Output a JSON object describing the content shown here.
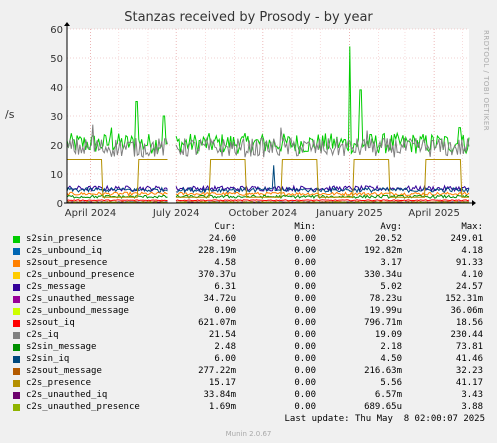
{
  "title": "Stanzas received by Prosody - by year",
  "side_label": "RRDTOOL / TOBI OETIKER",
  "ylabel": "/s",
  "chart_data": {
    "type": "line",
    "title": "Stanzas received by Prosody - by year",
    "xlabel": "",
    "ylabel": "/s",
    "ylim": [
      0,
      60
    ],
    "yticks": [
      0,
      10,
      20,
      30,
      40,
      50,
      60
    ],
    "xlim": [
      "2024-03-07",
      "2025-05-08"
    ],
    "xticks": [
      {
        "date": "2024-04-01",
        "label": "April 2024"
      },
      {
        "date": "2024-07-01",
        "label": "July 2024"
      },
      {
        "date": "2024-10-01",
        "label": "October 2024"
      },
      {
        "date": "2025-01-01",
        "label": "January 2025"
      },
      {
        "date": "2025-04-01",
        "label": "April 2025"
      }
    ],
    "grid": true,
    "gap": [
      "2024-06-22",
      "2024-06-30"
    ],
    "series": [
      {
        "name": "s2sin_presence",
        "color": "#00cc00",
        "avg": 20.52,
        "spikes": [
          [
            "2024-05-20",
            35
          ],
          [
            "2024-06-18",
            30
          ],
          [
            "2024-04-23",
            26
          ],
          [
            "2025-01-01",
            54
          ],
          [
            "2025-01-13",
            39
          ],
          [
            "2025-04-28",
            26
          ]
        ]
      },
      {
        "name": "c2s_unbound_iq",
        "color": "#0066b3",
        "avg": 0.19,
        "spikes": []
      },
      {
        "name": "s2sout_presence",
        "color": "#ff8000",
        "avg": 3.17,
        "spikes": []
      },
      {
        "name": "c2s_unbound_presence",
        "color": "#ffcc00",
        "avg": 0.0003,
        "spikes": []
      },
      {
        "name": "c2s_message",
        "color": "#330099",
        "avg": 5.02,
        "spikes": []
      },
      {
        "name": "c2s_unauthed_message",
        "color": "#990099",
        "avg": 8e-05,
        "spikes": []
      },
      {
        "name": "c2s_unbound_message",
        "color": "#ccff00",
        "avg": 2e-05,
        "spikes": []
      },
      {
        "name": "s2sout_iq",
        "color": "#ff0000",
        "avg": 0.797,
        "spikes": []
      },
      {
        "name": "c2s_iq",
        "color": "#808080",
        "avg": 19.09,
        "spikes": [
          [
            "2024-04-03",
            27
          ],
          [
            "2024-10-20",
            26
          ],
          [
            "2025-01-20",
            25
          ]
        ]
      },
      {
        "name": "s2sin_message",
        "color": "#008f00",
        "avg": 2.18,
        "spikes": []
      },
      {
        "name": "s2sin_iq",
        "color": "#00487d",
        "avg": 4.5,
        "spikes": [
          [
            "2024-10-12",
            13
          ]
        ]
      },
      {
        "name": "s2sout_message",
        "color": "#b35a00",
        "avg": 0.217,
        "spikes": []
      },
      {
        "name": "c2s_presence",
        "color": "#b38f00",
        "avg": 5.56,
        "spikes": []
      },
      {
        "name": "c2s_unauthed_iq",
        "color": "#6b006b",
        "avg": 0.00657,
        "spikes": []
      },
      {
        "name": "c2s_unauthed_presence",
        "color": "#8fb300",
        "avg": 0.00069,
        "spikes": []
      }
    ]
  },
  "legend": {
    "headers": {
      "cur": "Cur:",
      "min": "Min:",
      "avg": "Avg:",
      "max": "Max:"
    },
    "rows": [
      {
        "name": "s2sin_presence",
        "color": "#00cc00",
        "cur": "24.60",
        "min": "0.00",
        "avg": "20.52",
        "max": "249.01"
      },
      {
        "name": "c2s_unbound_iq",
        "color": "#0066b3",
        "cur": "228.19m",
        "min": "0.00",
        "avg": "192.82m",
        "max": "4.18"
      },
      {
        "name": "s2sout_presence",
        "color": "#ff8000",
        "cur": "4.58",
        "min": "0.00",
        "avg": "3.17",
        "max": "91.33"
      },
      {
        "name": "c2s_unbound_presence",
        "color": "#ffcc00",
        "cur": "370.37u",
        "min": "0.00",
        "avg": "330.34u",
        "max": "4.10"
      },
      {
        "name": "c2s_message",
        "color": "#330099",
        "cur": "6.31",
        "min": "0.00",
        "avg": "5.02",
        "max": "24.57"
      },
      {
        "name": "c2s_unauthed_message",
        "color": "#990099",
        "cur": "34.72u",
        "min": "0.00",
        "avg": "78.23u",
        "max": "152.31m"
      },
      {
        "name": "c2s_unbound_message",
        "color": "#ccff00",
        "cur": "0.00",
        "min": "0.00",
        "avg": "19.99u",
        "max": "36.06m"
      },
      {
        "name": "s2sout_iq",
        "color": "#ff0000",
        "cur": "621.07m",
        "min": "0.00",
        "avg": "796.71m",
        "max": "18.56"
      },
      {
        "name": "c2s_iq",
        "color": "#808080",
        "cur": "21.54",
        "min": "0.00",
        "avg": "19.09",
        "max": "230.44"
      },
      {
        "name": "s2sin_message",
        "color": "#008f00",
        "cur": "2.48",
        "min": "0.00",
        "avg": "2.18",
        "max": "73.81"
      },
      {
        "name": "s2sin_iq",
        "color": "#00487d",
        "cur": "6.00",
        "min": "0.00",
        "avg": "4.50",
        "max": "41.46"
      },
      {
        "name": "s2sout_message",
        "color": "#b35a00",
        "cur": "277.22m",
        "min": "0.00",
        "avg": "216.63m",
        "max": "32.23"
      },
      {
        "name": "c2s_presence",
        "color": "#b38f00",
        "cur": "15.17",
        "min": "0.00",
        "avg": "5.56",
        "max": "41.17"
      },
      {
        "name": "c2s_unauthed_iq",
        "color": "#6b006b",
        "cur": "33.84m",
        "min": "0.00",
        "avg": "6.57m",
        "max": "3.43"
      },
      {
        "name": "c2s_unauthed_presence",
        "color": "#8fb300",
        "cur": "1.69m",
        "min": "0.00",
        "avg": "689.65u",
        "max": "3.88"
      }
    ]
  },
  "last_update": "Last update: Thu May  8 02:00:07 2025",
  "version": "Munin 2.0.67"
}
